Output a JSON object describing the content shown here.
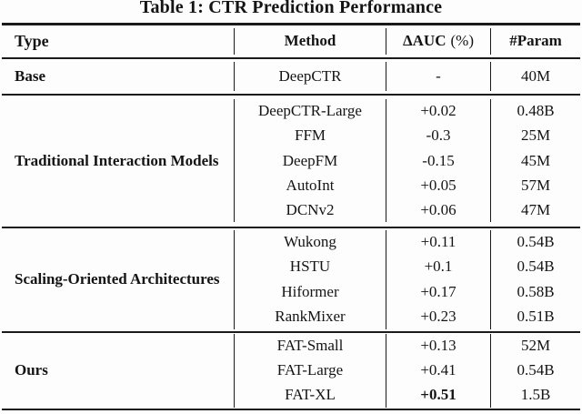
{
  "title": "Table 1: CTR Prediction Performance",
  "table": {
    "headers": {
      "type": "Type",
      "method": "Method",
      "auc": "ΔAUC",
      "auc_unit": "(%)",
      "param": "#Param"
    },
    "sections": [
      {
        "type": "Base",
        "rows": [
          {
            "method": "DeepCTR",
            "auc": "-",
            "param": "40M"
          }
        ]
      },
      {
        "type": "Traditional Interaction Models",
        "rows": [
          {
            "method": "DeepCTR-Large",
            "auc": "+0.02",
            "param": "0.48B"
          },
          {
            "method": "FFM",
            "auc": "-0.3",
            "param": "25M"
          },
          {
            "method": "DeepFM",
            "auc": "-0.15",
            "param": "45M"
          },
          {
            "method": "AutoInt",
            "auc": "+0.05",
            "param": "57M"
          },
          {
            "method": "DCNv2",
            "auc": "+0.06",
            "param": "47M"
          }
        ]
      },
      {
        "type": "Scaling-Oriented Architectures",
        "rows": [
          {
            "method": "Wukong",
            "auc": "+0.11",
            "param": "0.54B"
          },
          {
            "method": "HSTU",
            "auc": "+0.1",
            "param": "0.54B"
          },
          {
            "method": "Hiformer",
            "auc": "+0.17",
            "param": "0.58B"
          },
          {
            "method": "RankMixer",
            "auc": "+0.23",
            "param": "0.51B"
          }
        ]
      },
      {
        "type": "Ours",
        "rows": [
          {
            "method": "FAT-Small",
            "auc": "+0.13",
            "param": "52M"
          },
          {
            "method": "FAT-Large",
            "auc": "+0.41",
            "param": "0.54B"
          },
          {
            "method": "FAT-XL",
            "auc": "+0.51",
            "param": "1.5B"
          }
        ]
      }
    ]
  },
  "colors": {
    "text": "#141414",
    "rule": "#1a1a1a",
    "background": "#fdfdfd"
  }
}
